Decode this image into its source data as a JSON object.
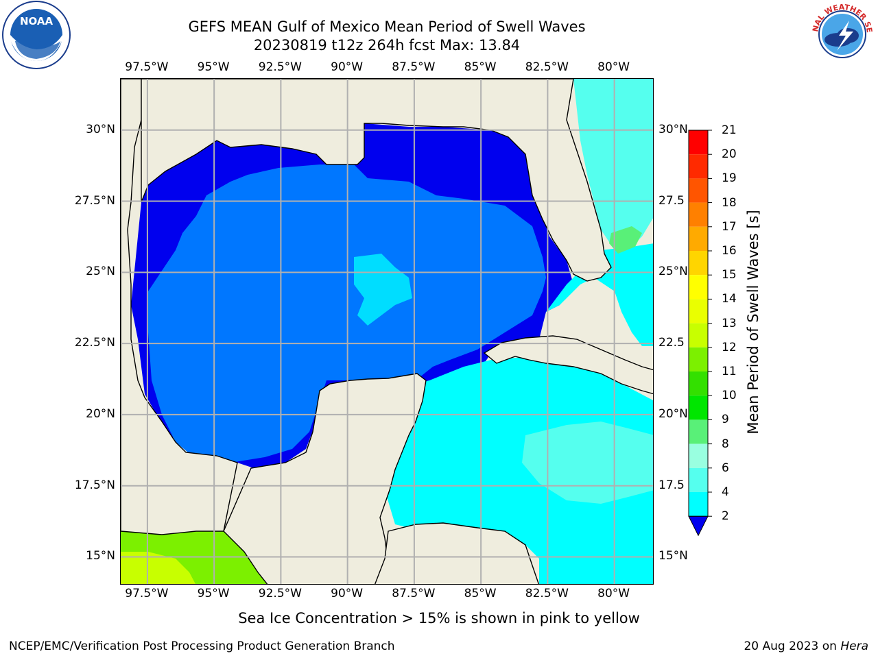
{
  "title": {
    "line1": "GEFS MEAN Gulf of Mexico Mean Period of Swell Waves",
    "line2": "20230819 t12z 264h fcst   Max: 13.84"
  },
  "map": {
    "lon_range": [
      -98.5,
      -78.5
    ],
    "lat_range": [
      14.0,
      31.8
    ],
    "lon_ticks": [
      "97.5°W",
      "95°W",
      "92.5°W",
      "90°W",
      "87.5°W",
      "85°W",
      "82.5°W",
      "80°W"
    ],
    "lon_tick_values": [
      -97.5,
      -95,
      -92.5,
      -90,
      -87.5,
      -85,
      -82.5,
      -80
    ],
    "lat_ticks_left": [
      "30°N",
      "27.5°N",
      "25°N",
      "22.5°N",
      "20°N",
      "17.5°N",
      "15°N"
    ],
    "lat_ticks_right": [
      "30°N",
      "27.5",
      "25°N",
      "22.5",
      "20°N",
      "17.5",
      "15°N"
    ],
    "lat_tick_values": [
      30,
      27.5,
      25,
      22.5,
      20,
      17.5,
      15
    ],
    "gridlines": true,
    "land_color": "#efedde",
    "grid_color": "#b0b0b0"
  },
  "colorbar": {
    "title": "Mean Period of Swell Waves [s]",
    "levels": [
      "21",
      "20",
      "19",
      "18",
      "17",
      "16",
      "15",
      "14",
      "13",
      "12",
      "11",
      "10",
      "9",
      "8",
      "6",
      "4",
      "2"
    ],
    "colors": [
      "#ff0000",
      "#ff2a00",
      "#ff5500",
      "#ff8000",
      "#ffaa00",
      "#ffd500",
      "#ffff00",
      "#eaff00",
      "#c8ff00",
      "#7cf000",
      "#33e000",
      "#00e600",
      "#59f078",
      "#99ffe0",
      "#55ffee",
      "#00ffff",
      "#00aaff",
      "#0077ff",
      "#0000ee"
    ]
  },
  "footnote": "Sea Ice Concentration > 15% is shown in pink to yellow",
  "footer": {
    "left": "NCEP/EMC/Verification Post Processing Product Generation Branch",
    "right_date": "20 Aug 2023 on ",
    "right_host": "Hera"
  },
  "logos": {
    "noaa_text": "NOAA",
    "nws_text": "NATIONAL WEATHER SERVICE"
  }
}
